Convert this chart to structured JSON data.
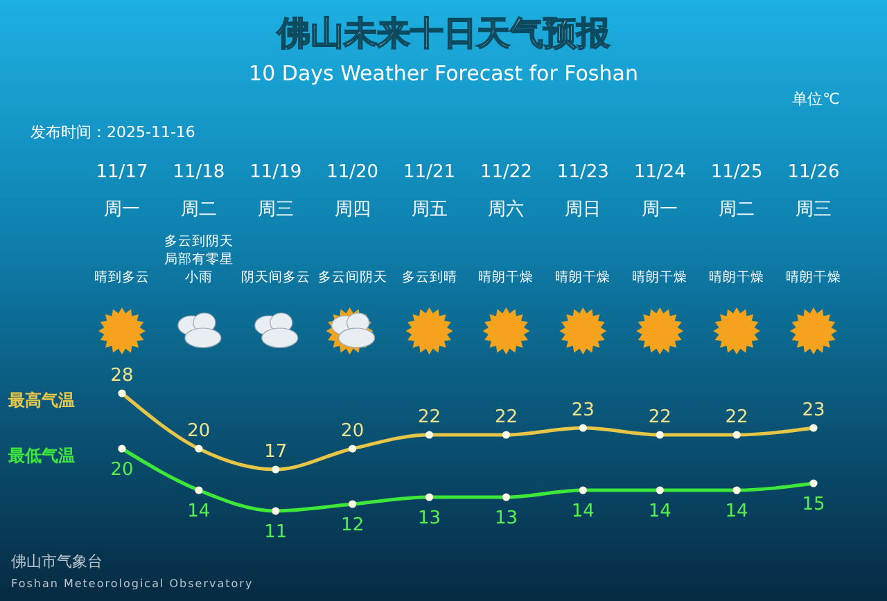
{
  "chart_data": {
    "type": "line",
    "title": "佛山未来十日天气预报",
    "subtitle": "10 Days Weather Forecast for Foshan",
    "categories": [
      "11/17",
      "11/18",
      "11/19",
      "11/20",
      "11/21",
      "11/22",
      "11/23",
      "11/24",
      "11/25",
      "11/26"
    ],
    "series": [
      {
        "name": "最高气温",
        "color": "#e6c547",
        "values": [
          28,
          20,
          17,
          20,
          22,
          22,
          23,
          22,
          22,
          23
        ]
      },
      {
        "name": "最低气温",
        "color": "#3de83a",
        "values": [
          20,
          14,
          11,
          12,
          13,
          13,
          14,
          14,
          14,
          15
        ]
      }
    ],
    "data_labels": true,
    "marker": "circle",
    "line_style": "solid",
    "annotations": [
      "单位℃",
      "发布时间：2025-11-16",
      "佛山市气象台",
      "Foshan Meteorological Observatory",
      "周一",
      "周二",
      "周三",
      "周四",
      "周五",
      "周六",
      "周日",
      "周一",
      "周二",
      "周三",
      "晴到多云",
      "多云到阴天局部有零星小雨",
      "阴天间多云",
      "多云间阴天",
      "多云到晴",
      "晴朗干燥",
      "晴朗干燥",
      "晴朗干燥",
      "晴朗干燥",
      "晴朗干燥"
    ]
  }
}
